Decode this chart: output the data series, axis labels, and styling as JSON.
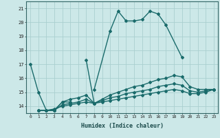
{
  "bg_color": "#cce8e8",
  "grid_color": "#aacfcf",
  "line_color": "#1a6b6b",
  "xlabel": "Humidex (Indice chaleur)",
  "xlim": [
    -0.5,
    23.5
  ],
  "ylim": [
    13.5,
    21.5
  ],
  "yticks": [
    14,
    15,
    16,
    17,
    18,
    19,
    20,
    21
  ],
  "xticks": [
    0,
    1,
    2,
    3,
    4,
    5,
    6,
    7,
    8,
    9,
    10,
    11,
    12,
    13,
    14,
    15,
    16,
    17,
    18,
    19,
    20,
    21,
    22,
    23
  ],
  "lines": [
    {
      "segments": [
        {
          "x": [
            0,
            1,
            2,
            3,
            4,
            5
          ],
          "y": [
            17.0,
            15.0,
            13.7,
            13.7,
            14.3,
            14.3
          ]
        },
        {
          "x": [
            8,
            10,
            11,
            12,
            13,
            14,
            15,
            16,
            17,
            19
          ],
          "y": [
            15.2,
            19.4,
            20.8,
            20.1,
            20.1,
            20.2,
            20.8,
            20.6,
            19.8,
            17.5
          ]
        }
      ]
    },
    {
      "segments": [
        {
          "x": [
            7,
            8
          ],
          "y": [
            17.3,
            14.2
          ]
        }
      ]
    },
    {
      "segments": [
        {
          "x": [
            1,
            2,
            3,
            4,
            5,
            6,
            7,
            8,
            9,
            10,
            11,
            12,
            13,
            14,
            15,
            16,
            17,
            18,
            19,
            20,
            21,
            22,
            23
          ],
          "y": [
            13.7,
            13.7,
            13.7,
            14.3,
            14.5,
            14.6,
            14.8,
            14.2,
            14.5,
            14.8,
            15.0,
            15.2,
            15.4,
            15.5,
            15.7,
            15.9,
            16.0,
            16.2,
            16.1,
            15.4,
            15.2,
            15.2,
            15.2
          ]
        }
      ]
    },
    {
      "segments": [
        {
          "x": [
            1,
            2,
            3,
            4,
            5,
            6,
            7,
            8,
            9,
            10,
            11,
            12,
            13,
            14,
            15,
            16,
            17,
            18,
            19,
            20,
            21,
            22,
            23
          ],
          "y": [
            13.7,
            13.7,
            13.7,
            14.1,
            14.2,
            14.3,
            14.5,
            14.2,
            14.4,
            14.6,
            14.7,
            14.9,
            15.0,
            15.1,
            15.2,
            15.4,
            15.5,
            15.6,
            15.5,
            15.1,
            15.0,
            15.1,
            15.2
          ]
        }
      ]
    },
    {
      "segments": [
        {
          "x": [
            1,
            2,
            3,
            4,
            5,
            6,
            7,
            8,
            9,
            10,
            11,
            12,
            13,
            14,
            15,
            16,
            17,
            18,
            19,
            20,
            21,
            22,
            23
          ],
          "y": [
            13.7,
            13.7,
            13.8,
            14.0,
            14.1,
            14.2,
            14.3,
            14.2,
            14.3,
            14.4,
            14.5,
            14.6,
            14.7,
            14.8,
            14.9,
            15.0,
            15.1,
            15.2,
            15.1,
            14.9,
            14.9,
            15.0,
            15.2
          ]
        }
      ]
    }
  ],
  "marker": "D",
  "markersize": 2,
  "linewidth": 1.0
}
